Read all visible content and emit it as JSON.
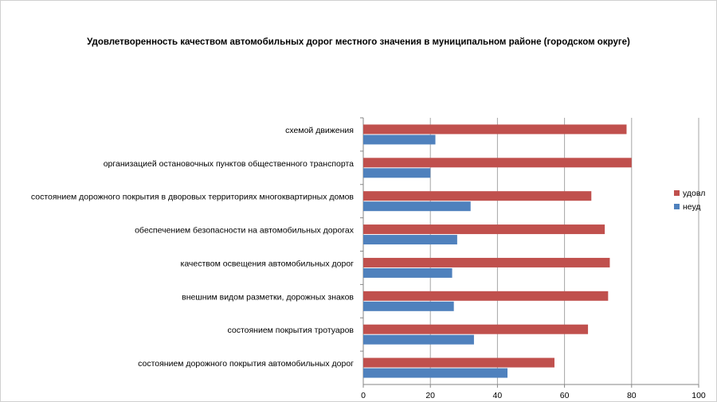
{
  "chart_data": {
    "type": "bar",
    "orientation": "horizontal",
    "title": "Удовлетворенность качеством автомобильных дорог местного значения в муниципальном районе (городском округе)",
    "categories": [
      "схемой движения",
      "организацией остановочных пунктов общественного транспорта",
      "состоянием дорожного покрытия в дворовых территориях многоквартирных домов",
      "обеспечением безопасности на автомобильных дорогах",
      "качеством освещения автомобильных дорог",
      "внешним видом разметки, дорожных знаков",
      "состоянием покрытия тротуаров",
      "состоянием дорожного покрытия автомобильных дорог"
    ],
    "series": [
      {
        "name": "удовл",
        "color": "#c0504d",
        "values": [
          78.5,
          80,
          68,
          72,
          73.5,
          73,
          67,
          57
        ]
      },
      {
        "name": "неуд",
        "color": "#4f81bd",
        "values": [
          21.5,
          20,
          32,
          28,
          26.5,
          27,
          33,
          43
        ]
      }
    ],
    "xlim": [
      0,
      100
    ],
    "xticks": [
      0,
      20,
      40,
      60,
      80,
      100
    ],
    "xlabel": "",
    "ylabel": "",
    "grid": "vertical major gridlines",
    "legend_position": "right"
  }
}
